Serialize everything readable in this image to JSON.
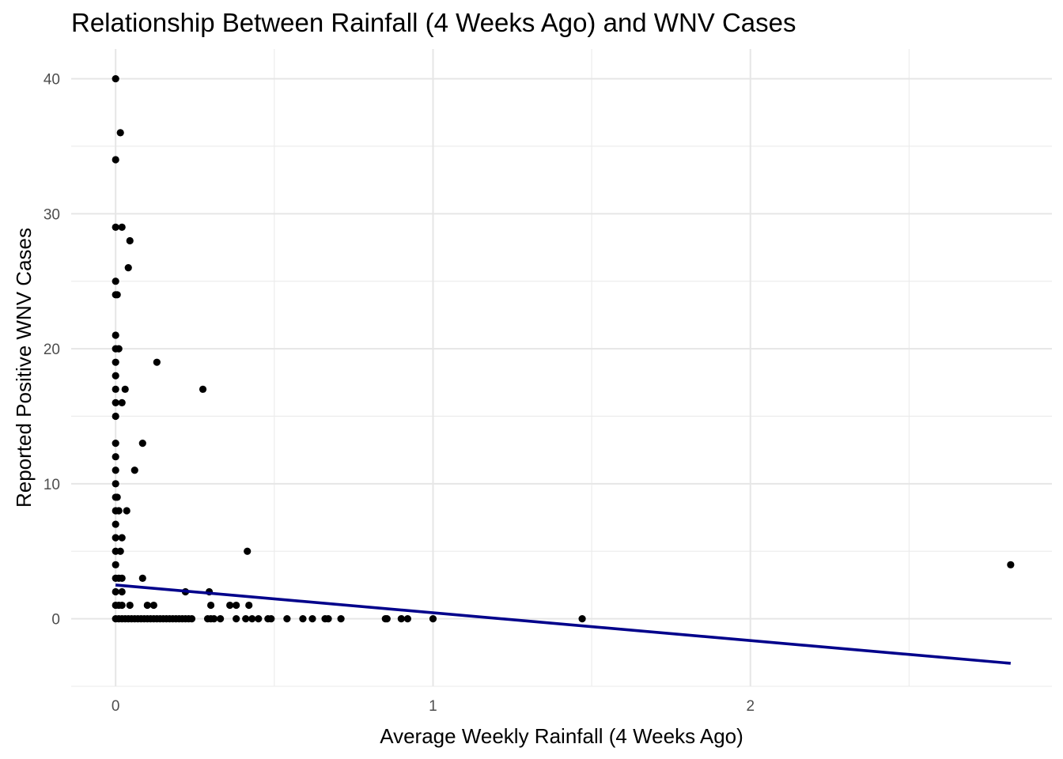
{
  "chart_data": {
    "type": "scatter",
    "title": "Relationship Between Rainfall (4 Weeks Ago) and WNV Cases",
    "xlabel": "Average Weekly Rainfall (4 Weeks Ago)",
    "ylabel": "Reported Positive WNV Cases",
    "xlim": [
      -0.14,
      2.95
    ],
    "ylim": [
      -5,
      42.2
    ],
    "x_ticks": [
      0,
      1,
      2
    ],
    "x_tick_labels": [
      "0",
      "1",
      "2"
    ],
    "y_ticks": [
      0,
      10,
      20,
      30,
      40
    ],
    "y_tick_labels": [
      "0",
      "10",
      "20",
      "30",
      "40"
    ],
    "grid": true,
    "legend": "none",
    "point_color": "#000000",
    "trend_color": "#00008b",
    "trend_line": {
      "type": "linear",
      "x": [
        0,
        2.82
      ],
      "y": [
        2.5,
        -3.3
      ]
    },
    "points": [
      {
        "x": 0,
        "y": 40
      },
      {
        "x": 0.015,
        "y": 36
      },
      {
        "x": 0,
        "y": 34
      },
      {
        "x": 0,
        "y": 29
      },
      {
        "x": 0.02,
        "y": 29
      },
      {
        "x": 0.045,
        "y": 28
      },
      {
        "x": 0.04,
        "y": 26
      },
      {
        "x": 0,
        "y": 25
      },
      {
        "x": 0,
        "y": 24
      },
      {
        "x": 0.005,
        "y": 24
      },
      {
        "x": 0,
        "y": 21
      },
      {
        "x": 0,
        "y": 20
      },
      {
        "x": 0.01,
        "y": 20
      },
      {
        "x": 0.13,
        "y": 19
      },
      {
        "x": 0,
        "y": 19
      },
      {
        "x": 0,
        "y": 18
      },
      {
        "x": 0,
        "y": 17
      },
      {
        "x": 0.03,
        "y": 17
      },
      {
        "x": 0.275,
        "y": 17
      },
      {
        "x": 0,
        "y": 16
      },
      {
        "x": 0.02,
        "y": 16
      },
      {
        "x": 0,
        "y": 15
      },
      {
        "x": 0,
        "y": 13
      },
      {
        "x": 0.085,
        "y": 13
      },
      {
        "x": 0,
        "y": 12
      },
      {
        "x": 0,
        "y": 11
      },
      {
        "x": 0.06,
        "y": 11
      },
      {
        "x": 0,
        "y": 10
      },
      {
        "x": 0,
        "y": 9
      },
      {
        "x": 0.005,
        "y": 9
      },
      {
        "x": 0,
        "y": 8
      },
      {
        "x": 0.01,
        "y": 8
      },
      {
        "x": 0.035,
        "y": 8
      },
      {
        "x": 0,
        "y": 7
      },
      {
        "x": 0,
        "y": 6
      },
      {
        "x": 0.02,
        "y": 6
      },
      {
        "x": 0,
        "y": 5
      },
      {
        "x": 0.015,
        "y": 5
      },
      {
        "x": 0.415,
        "y": 5
      },
      {
        "x": 0,
        "y": 4
      },
      {
        "x": 2.82,
        "y": 4
      },
      {
        "x": 0,
        "y": 3
      },
      {
        "x": 0.01,
        "y": 3
      },
      {
        "x": 0.02,
        "y": 3
      },
      {
        "x": 0.085,
        "y": 3
      },
      {
        "x": 0,
        "y": 2
      },
      {
        "x": 0.02,
        "y": 2
      },
      {
        "x": 0.22,
        "y": 2
      },
      {
        "x": 0.295,
        "y": 2
      },
      {
        "x": 0,
        "y": 1
      },
      {
        "x": 0.01,
        "y": 1
      },
      {
        "x": 0.02,
        "y": 1
      },
      {
        "x": 0.045,
        "y": 1
      },
      {
        "x": 0.1,
        "y": 1
      },
      {
        "x": 0.12,
        "y": 1
      },
      {
        "x": 0.3,
        "y": 1
      },
      {
        "x": 0.36,
        "y": 1
      },
      {
        "x": 0.38,
        "y": 1
      },
      {
        "x": 0.42,
        "y": 1
      },
      {
        "x": 0,
        "y": 0
      },
      {
        "x": 0.01,
        "y": 0
      },
      {
        "x": 0.02,
        "y": 0
      },
      {
        "x": 0.03,
        "y": 0
      },
      {
        "x": 0.04,
        "y": 0
      },
      {
        "x": 0.05,
        "y": 0
      },
      {
        "x": 0.06,
        "y": 0
      },
      {
        "x": 0.07,
        "y": 0
      },
      {
        "x": 0.08,
        "y": 0
      },
      {
        "x": 0.09,
        "y": 0
      },
      {
        "x": 0.1,
        "y": 0
      },
      {
        "x": 0.11,
        "y": 0
      },
      {
        "x": 0.12,
        "y": 0
      },
      {
        "x": 0.13,
        "y": 0
      },
      {
        "x": 0.14,
        "y": 0
      },
      {
        "x": 0.15,
        "y": 0
      },
      {
        "x": 0.16,
        "y": 0
      },
      {
        "x": 0.17,
        "y": 0
      },
      {
        "x": 0.18,
        "y": 0
      },
      {
        "x": 0.19,
        "y": 0
      },
      {
        "x": 0.2,
        "y": 0
      },
      {
        "x": 0.21,
        "y": 0
      },
      {
        "x": 0.22,
        "y": 0
      },
      {
        "x": 0.23,
        "y": 0
      },
      {
        "x": 0.24,
        "y": 0
      },
      {
        "x": 0.29,
        "y": 0
      },
      {
        "x": 0.3,
        "y": 0
      },
      {
        "x": 0.31,
        "y": 0
      },
      {
        "x": 0.33,
        "y": 0
      },
      {
        "x": 0.38,
        "y": 0
      },
      {
        "x": 0.41,
        "y": 0
      },
      {
        "x": 0.43,
        "y": 0
      },
      {
        "x": 0.45,
        "y": 0
      },
      {
        "x": 0.48,
        "y": 0
      },
      {
        "x": 0.49,
        "y": 0
      },
      {
        "x": 0.54,
        "y": 0
      },
      {
        "x": 0.59,
        "y": 0
      },
      {
        "x": 0.62,
        "y": 0
      },
      {
        "x": 0.66,
        "y": 0
      },
      {
        "x": 0.67,
        "y": 0
      },
      {
        "x": 0.71,
        "y": 0
      },
      {
        "x": 0.85,
        "y": 0
      },
      {
        "x": 0.855,
        "y": 0
      },
      {
        "x": 0.9,
        "y": 0
      },
      {
        "x": 0.92,
        "y": 0
      },
      {
        "x": 1.0,
        "y": 0
      },
      {
        "x": 1.47,
        "y": 0
      }
    ]
  }
}
